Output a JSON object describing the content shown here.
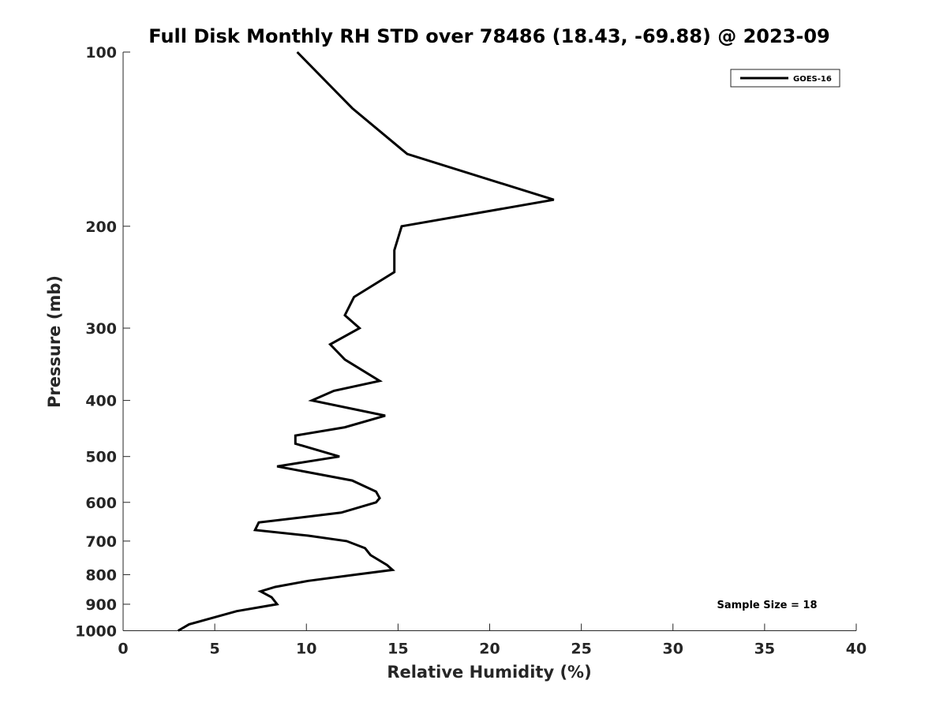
{
  "chart_data": {
    "type": "line",
    "title": "Full Disk Monthly RH STD over 78486 (18.43, -69.88) @ 2023-09",
    "xlabel": "Relative Humidity (%)",
    "ylabel": "Pressure (mb)",
    "xlim": [
      0,
      40
    ],
    "ylim": [
      100,
      1000
    ],
    "y_scale": "log",
    "y_reversed": true,
    "x_ticks": [
      "0",
      "5",
      "10",
      "15",
      "20",
      "25",
      "30",
      "35",
      "40"
    ],
    "x_tick_values": [
      0,
      5,
      10,
      15,
      20,
      25,
      30,
      35,
      40
    ],
    "y_ticks": [
      "100",
      "200",
      "300",
      "400",
      "500",
      "600",
      "700",
      "800",
      "900",
      "1000"
    ],
    "y_tick_values": [
      100,
      200,
      300,
      400,
      500,
      600,
      700,
      800,
      900,
      1000
    ],
    "grid": false,
    "legend_position": "top-right",
    "annotation": "Sample Size = 18",
    "series": [
      {
        "name": "GOES-16",
        "color": "#000000",
        "points": [
          [
            9.5,
            100
          ],
          [
            12.5,
            125
          ],
          [
            15.5,
            150
          ],
          [
            23.5,
            180
          ],
          [
            15.2,
            200
          ],
          [
            14.8,
            220
          ],
          [
            14.8,
            240
          ],
          [
            12.6,
            265
          ],
          [
            12.1,
            285
          ],
          [
            12.9,
            300
          ],
          [
            11.3,
            320
          ],
          [
            12.1,
            340
          ],
          [
            14.0,
            370
          ],
          [
            11.5,
            385
          ],
          [
            10.3,
            400
          ],
          [
            14.3,
            425
          ],
          [
            12.1,
            445
          ],
          [
            9.4,
            460
          ],
          [
            9.4,
            475
          ],
          [
            11.8,
            500
          ],
          [
            8.4,
            520
          ],
          [
            12.5,
            550
          ],
          [
            13.8,
            575
          ],
          [
            14.0,
            590
          ],
          [
            13.8,
            600
          ],
          [
            11.9,
            625
          ],
          [
            7.4,
            650
          ],
          [
            7.2,
            670
          ],
          [
            10.1,
            685
          ],
          [
            12.2,
            700
          ],
          [
            13.2,
            720
          ],
          [
            13.5,
            740
          ],
          [
            14.4,
            770
          ],
          [
            14.7,
            785
          ],
          [
            12.7,
            800
          ],
          [
            10.1,
            820
          ],
          [
            8.3,
            840
          ],
          [
            7.5,
            855
          ],
          [
            8.1,
            875
          ],
          [
            8.4,
            900
          ],
          [
            6.2,
            925
          ],
          [
            3.6,
            975
          ],
          [
            3.0,
            1000
          ]
        ]
      }
    ]
  }
}
